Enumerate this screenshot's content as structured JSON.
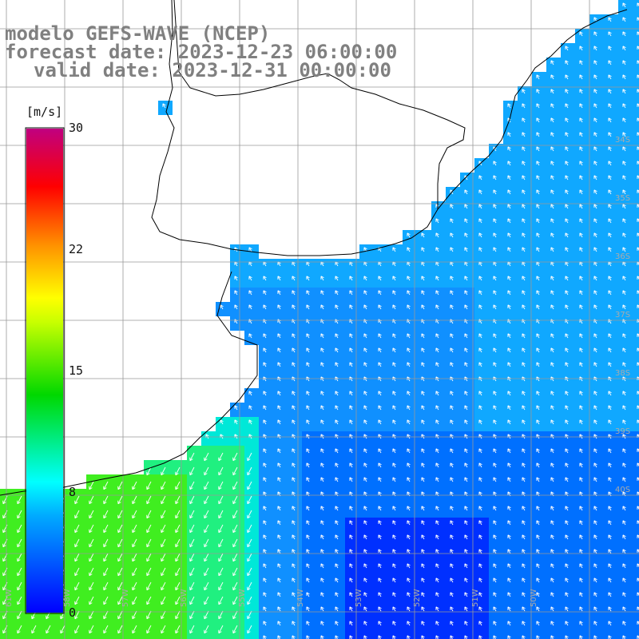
{
  "title": {
    "line1": "modelo GEFS-WAVE (NCEP)",
    "line2": "forecast date: 2023-12-23 06:00:00",
    "line3": "valid date: 2023-12-31 00:00:00"
  },
  "colorbar": {
    "unit": "[m/s]",
    "ticks": [
      "30",
      "22",
      "15",
      "8",
      "0"
    ],
    "tick_values": [
      30,
      22,
      15,
      8,
      0
    ],
    "colors": [
      "#0000ff",
      "#00a0ff",
      "#00ffff",
      "#00ff60",
      "#00e000",
      "#a0ff00",
      "#ffff00",
      "#ffa000",
      "#ff3000",
      "#ff0000",
      "#e00060",
      "#c00080"
    ]
  },
  "map": {
    "ocean_color": "#2080ff",
    "land_color": "#ffffff",
    "grid_color": "#a0a0a0",
    "arrow_color": "#ffffff",
    "lon_labels": [
      "61W",
      "58W",
      "57W",
      "56W",
      "55W",
      "54W",
      "53W",
      "52W",
      "51W",
      "50W"
    ],
    "lat_labels": [
      "34S",
      "35S",
      "36S",
      "37S",
      "38S",
      "39S",
      "40S"
    ]
  }
}
